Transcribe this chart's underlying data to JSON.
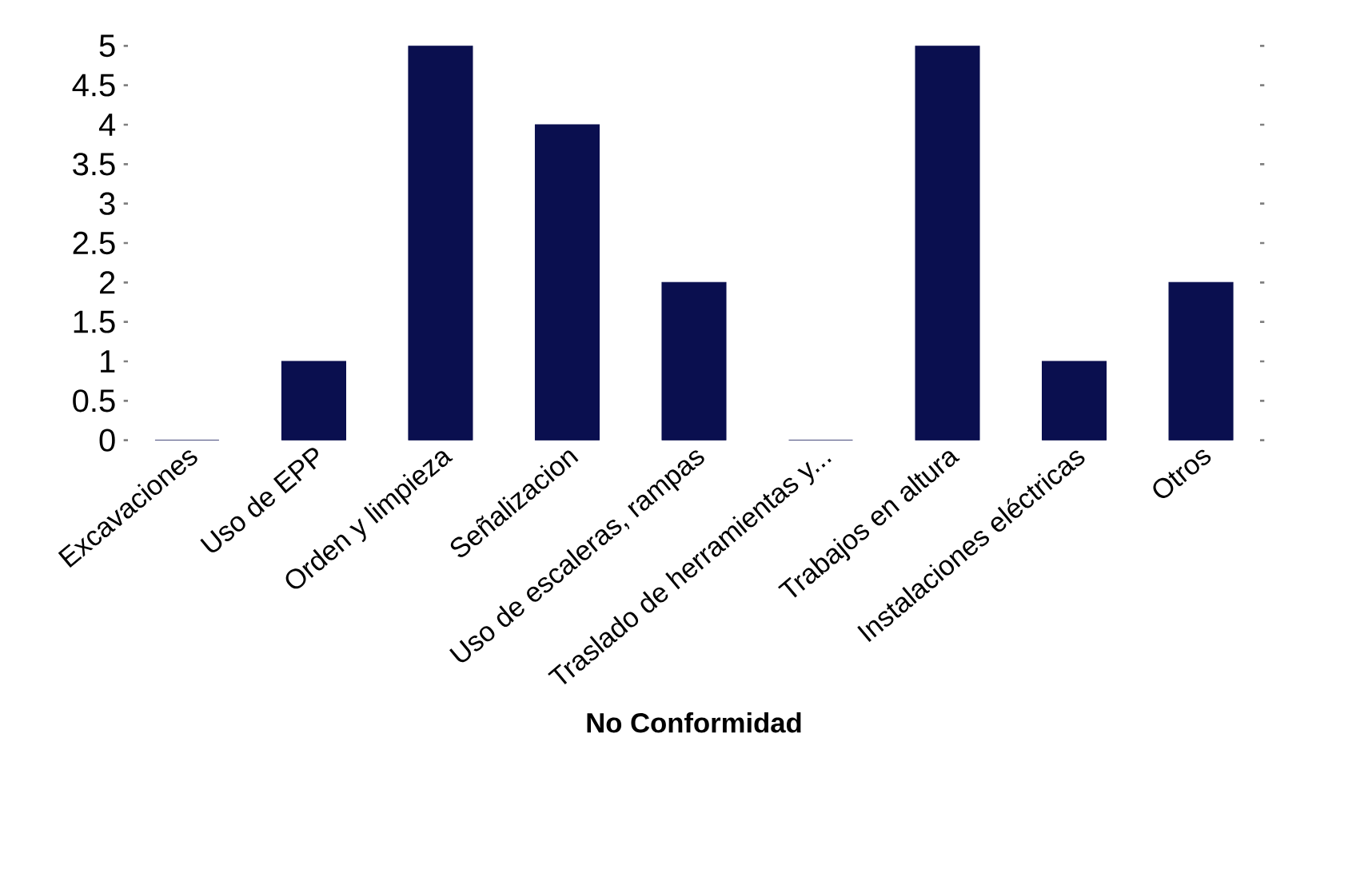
{
  "chart_data": {
    "type": "bar",
    "xlabel": "No Conformidad",
    "categories": [
      "Excavaciones",
      "Uso de EPP",
      "Orden y limpieza",
      "Señalizacion",
      "Uso de escaleras, rampas",
      "Traslado de herramientas y...",
      "Trabajos en altura",
      "Instalaciones eléctricas",
      "Otros"
    ],
    "values": [
      0,
      1,
      5,
      4,
      2,
      0,
      5,
      1,
      2
    ],
    "color": "#0a0f4f",
    "ylim": [
      0,
      5
    ],
    "yticks": [
      0,
      0.5,
      1,
      1.5,
      2,
      2.5,
      3,
      3.5,
      4,
      4.5,
      5
    ]
  }
}
